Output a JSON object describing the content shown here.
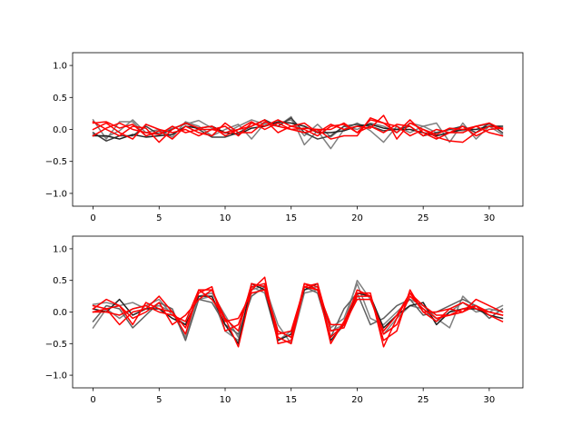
{
  "chart_data": [
    {
      "type": "line",
      "xlim": [
        -1.55,
        32.55
      ],
      "ylim": [
        -1.2,
        1.2
      ],
      "xticks": [
        0,
        5,
        10,
        15,
        20,
        25,
        30
      ],
      "yticks": [
        -1.0,
        -0.5,
        0.0,
        0.5,
        1.0
      ],
      "x": [
        0,
        1,
        2,
        3,
        4,
        5,
        6,
        7,
        8,
        9,
        10,
        11,
        12,
        13,
        14,
        15,
        16,
        17,
        18,
        19,
        20,
        21,
        22,
        23,
        24,
        25,
        26,
        27,
        28,
        29,
        30,
        31
      ],
      "series": [
        {
          "color": "#808080",
          "values": [
            0.15,
            -0.15,
            0.12,
            0.12,
            -0.1,
            -0.05,
            0.02,
            0.08,
            0.14,
            0.02,
            -0.06,
            0.05,
            0.15,
            0.08,
            0.05,
            0.2,
            -0.24,
            -0.02,
            -0.3,
            0.0,
            0.1,
            -0.02,
            -0.2,
            0.05,
            -0.05,
            0.05,
            0.1,
            -0.2,
            0.1,
            -0.15,
            0.05,
            -0.08
          ]
        },
        {
          "color": "#808080",
          "values": [
            -0.08,
            -0.12,
            -0.02,
            0.15,
            -0.05,
            0.0,
            -0.12,
            0.12,
            0.05,
            -0.1,
            0.0,
            0.08,
            -0.15,
            0.1,
            0.1,
            0.15,
            -0.1,
            0.08,
            -0.12,
            0.05,
            0.0,
            0.1,
            0.05,
            -0.05,
            0.1,
            0.05,
            -0.05,
            0.0,
            -0.02,
            0.05,
            0.08,
            0.02
          ]
        },
        {
          "color": "#404040",
          "values": [
            -0.05,
            -0.18,
            -0.1,
            -0.1,
            0.05,
            -0.08,
            0.0,
            0.1,
            0.0,
            -0.12,
            -0.12,
            -0.05,
            0.05,
            0.15,
            0.05,
            0.18,
            -0.05,
            -0.15,
            -0.1,
            0.05,
            0.08,
            0.05,
            -0.02,
            0.0,
            0.05,
            -0.1,
            -0.05,
            0.0,
            0.05,
            -0.05,
            0.1,
            -0.05
          ]
        },
        {
          "color": "#222222",
          "values": [
            -0.1,
            -0.1,
            -0.15,
            -0.08,
            -0.12,
            -0.1,
            -0.08,
            0.05,
            0.02,
            0.05,
            -0.05,
            -0.08,
            0.02,
            0.05,
            0.12,
            0.1,
            0.05,
            -0.05,
            -0.05,
            -0.02,
            0.05,
            0.08,
            0.02,
            0.0,
            0.0,
            -0.05,
            -0.1,
            -0.05,
            0.0,
            0.0,
            0.05,
            0.05
          ]
        },
        {
          "color": "#ff0000",
          "values": [
            0.1,
            0.12,
            0.02,
            0.08,
            -0.1,
            -0.02,
            -0.15,
            0.05,
            -0.05,
            -0.1,
            0.1,
            -0.05,
            -0.05,
            0.12,
            0.05,
            0.0,
            0.02,
            0.0,
            -0.15,
            -0.1,
            -0.1,
            0.18,
            0.1,
            -0.05,
            0.15,
            -0.05,
            -0.15,
            -0.05,
            -0.05,
            0.05,
            0.1,
            0.0
          ]
        },
        {
          "color": "#ff0000",
          "values": [
            0.12,
            0.0,
            -0.1,
            0.05,
            0.02,
            -0.2,
            0.0,
            0.1,
            0.02,
            0.05,
            -0.1,
            0.0,
            0.12,
            0.0,
            0.1,
            0.0,
            -0.05,
            0.0,
            0.0,
            0.1,
            -0.05,
            0.15,
            0.1,
            0.05,
            -0.1,
            0.0,
            -0.12,
            -0.18,
            -0.2,
            -0.05,
            0.05,
            0.02
          ]
        },
        {
          "color": "#ff0000",
          "values": [
            -0.1,
            0.02,
            0.1,
            0.0,
            -0.05,
            -0.08,
            0.05,
            -0.05,
            0.0,
            0.0,
            -0.05,
            0.0,
            0.05,
            0.15,
            -0.05,
            0.05,
            0.1,
            -0.05,
            0.08,
            0.0,
            0.05,
            0.02,
            0.22,
            -0.15,
            0.1,
            0.0,
            -0.08,
            0.02,
            0.0,
            0.05,
            -0.05,
            -0.1
          ]
        },
        {
          "color": "#ff0000",
          "values": [
            0.0,
            0.1,
            -0.05,
            -0.15,
            0.08,
            0.0,
            -0.05,
            0.0,
            -0.1,
            0.0,
            0.05,
            -0.1,
            0.1,
            0.05,
            0.15,
            0.05,
            0.0,
            -0.1,
            0.05,
            0.08,
            -0.05,
            0.05,
            -0.05,
            0.08,
            0.05,
            -0.1,
            0.0,
            -0.05,
            0.05,
            -0.1,
            0.0,
            0.02
          ]
        }
      ]
    },
    {
      "type": "line",
      "xlim": [
        -1.55,
        32.55
      ],
      "ylim": [
        -1.2,
        1.2
      ],
      "xticks": [
        0,
        5,
        10,
        15,
        20,
        25,
        30
      ],
      "yticks": [
        -1.0,
        -0.5,
        0.0,
        0.5,
        1.0
      ],
      "x": [
        0,
        1,
        2,
        3,
        4,
        5,
        6,
        7,
        8,
        9,
        10,
        11,
        12,
        13,
        14,
        15,
        16,
        17,
        18,
        19,
        20,
        21,
        22,
        23,
        24,
        25,
        26,
        27,
        28,
        29,
        30,
        31
      ],
      "series": [
        {
          "color": "#808080",
          "values": [
            0.12,
            0.15,
            0.1,
            0.15,
            0.05,
            0.1,
            0.0,
            -0.4,
            0.25,
            0.3,
            -0.05,
            -0.4,
            0.35,
            0.42,
            -0.2,
            -0.5,
            0.3,
            0.35,
            -0.25,
            -0.1,
            0.45,
            -0.1,
            -0.2,
            0.0,
            0.2,
            0.1,
            -0.1,
            -0.25,
            0.25,
            0.05,
            0.0,
            0.1
          ]
        },
        {
          "color": "#808080",
          "values": [
            -0.25,
            0.05,
            -0.1,
            0.05,
            0.1,
            0.2,
            -0.05,
            -0.2,
            0.2,
            0.25,
            -0.3,
            -0.45,
            0.4,
            0.3,
            -0.45,
            -0.3,
            0.35,
            0.4,
            -0.3,
            -0.2,
            0.5,
            0.2,
            -0.35,
            -0.1,
            0.1,
            0.05,
            -0.15,
            0.0,
            0.15,
            0.0,
            0.05,
            0.0
          ]
        },
        {
          "color": "#606060",
          "values": [
            -0.15,
            0.1,
            0.05,
            -0.25,
            -0.05,
            0.15,
            0.05,
            -0.45,
            0.2,
            0.15,
            -0.2,
            -0.35,
            0.25,
            0.4,
            -0.3,
            -0.4,
            0.4,
            0.3,
            -0.4,
            0.05,
            0.3,
            -0.2,
            -0.1,
            0.1,
            0.2,
            -0.05,
            0.0,
            0.1,
            0.2,
            0.1,
            -0.1,
            0.05
          ]
        },
        {
          "color": "#222222",
          "values": [
            0.05,
            0.0,
            0.2,
            -0.05,
            0.05,
            0.05,
            -0.1,
            -0.2,
            0.25,
            0.25,
            -0.2,
            -0.5,
            0.45,
            0.35,
            -0.45,
            -0.35,
            0.35,
            0.45,
            -0.45,
            -0.2,
            0.3,
            0.25,
            -0.25,
            -0.05,
            0.1,
            0.15,
            -0.2,
            0.0,
            0.05,
            0.05,
            -0.05,
            -0.1
          ]
        },
        {
          "color": "#ff0000",
          "values": [
            0.05,
            0.2,
            0.1,
            -0.2,
            0.15,
            0.05,
            0.0,
            -0.35,
            0.35,
            0.35,
            -0.1,
            -0.55,
            0.35,
            0.55,
            -0.5,
            -0.45,
            0.45,
            0.4,
            -0.5,
            -0.15,
            0.3,
            0.3,
            -0.55,
            -0.1,
            0.3,
            0.0,
            0.0,
            0.05,
            0.15,
            0.05,
            0.0,
            -0.05
          ]
        },
        {
          "color": "#ff0000",
          "values": [
            0.0,
            0.05,
            -0.2,
            0.0,
            0.05,
            0.25,
            0.0,
            -0.25,
            0.3,
            0.4,
            -0.3,
            -0.2,
            0.4,
            0.45,
            -0.4,
            -0.5,
            0.4,
            0.45,
            -0.3,
            -0.25,
            0.25,
            0.25,
            -0.45,
            -0.3,
            0.35,
            0.0,
            -0.15,
            0.05,
            0.0,
            0.1,
            -0.05,
            -0.15
          ]
        },
        {
          "color": "#ff0000",
          "values": [
            0.1,
            0.05,
            0.1,
            -0.1,
            0.0,
            0.15,
            -0.2,
            -0.05,
            0.2,
            0.35,
            -0.15,
            -0.1,
            0.3,
            0.35,
            -0.35,
            -0.3,
            0.4,
            0.35,
            -0.4,
            -0.2,
            0.2,
            0.2,
            -0.3,
            -0.05,
            0.3,
            0.1,
            -0.05,
            -0.05,
            0.0,
            0.2,
            0.1,
            0.0
          ]
        },
        {
          "color": "#ff0000",
          "values": [
            0.0,
            0.0,
            -0.05,
            0.05,
            0.1,
            0.0,
            -0.05,
            -0.15,
            0.35,
            0.2,
            -0.1,
            -0.3,
            0.45,
            0.4,
            -0.3,
            -0.4,
            0.45,
            0.35,
            -0.2,
            -0.2,
            0.35,
            0.25,
            -0.35,
            -0.2,
            0.25,
            0.05,
            -0.1,
            -0.05,
            0.05,
            0.1,
            0.0,
            -0.05
          ]
        }
      ]
    }
  ]
}
